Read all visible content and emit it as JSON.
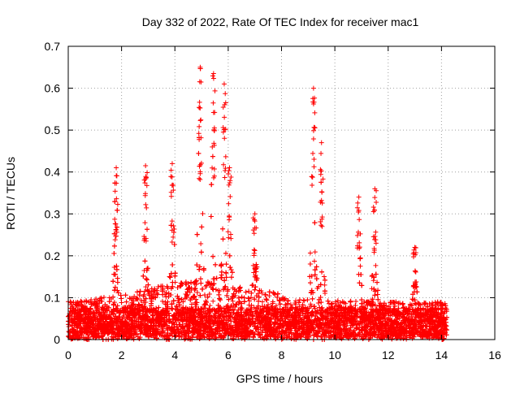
{
  "chart_data": {
    "type": "scatter",
    "title": "Day 332 of 2022, Rate Of TEC Index for receiver mac1",
    "xlabel": "GPS time / hours",
    "ylabel": "ROTI / TECUs",
    "xlim": [
      0,
      16
    ],
    "ylim": [
      0,
      0.7
    ],
    "xticks": [
      "0",
      "2",
      "4",
      "6",
      "8",
      "10",
      "12",
      "14",
      "16"
    ],
    "yticks": [
      "0",
      "0.1",
      "0.2",
      "0.3",
      "0.4",
      "0.5",
      "0.6",
      "0.7"
    ],
    "grid": true,
    "marker": "+",
    "marker_color": "#ff0000",
    "x_coverage": [
      0,
      14.2
    ],
    "peaks": [
      {
        "x": 1.8,
        "y": 0.41
      },
      {
        "x": 2.9,
        "y": 0.415
      },
      {
        "x": 3.9,
        "y": 0.42
      },
      {
        "x": 4.95,
        "y": 0.65
      },
      {
        "x": 5.45,
        "y": 0.635
      },
      {
        "x": 5.85,
        "y": 0.61
      },
      {
        "x": 6.05,
        "y": 0.41
      },
      {
        "x": 7.0,
        "y": 0.3
      },
      {
        "x": 9.2,
        "y": 0.6
      },
      {
        "x": 9.5,
        "y": 0.47
      },
      {
        "x": 10.9,
        "y": 0.34
      },
      {
        "x": 11.5,
        "y": 0.36
      },
      {
        "x": 13.0,
        "y": 0.22
      }
    ]
  }
}
